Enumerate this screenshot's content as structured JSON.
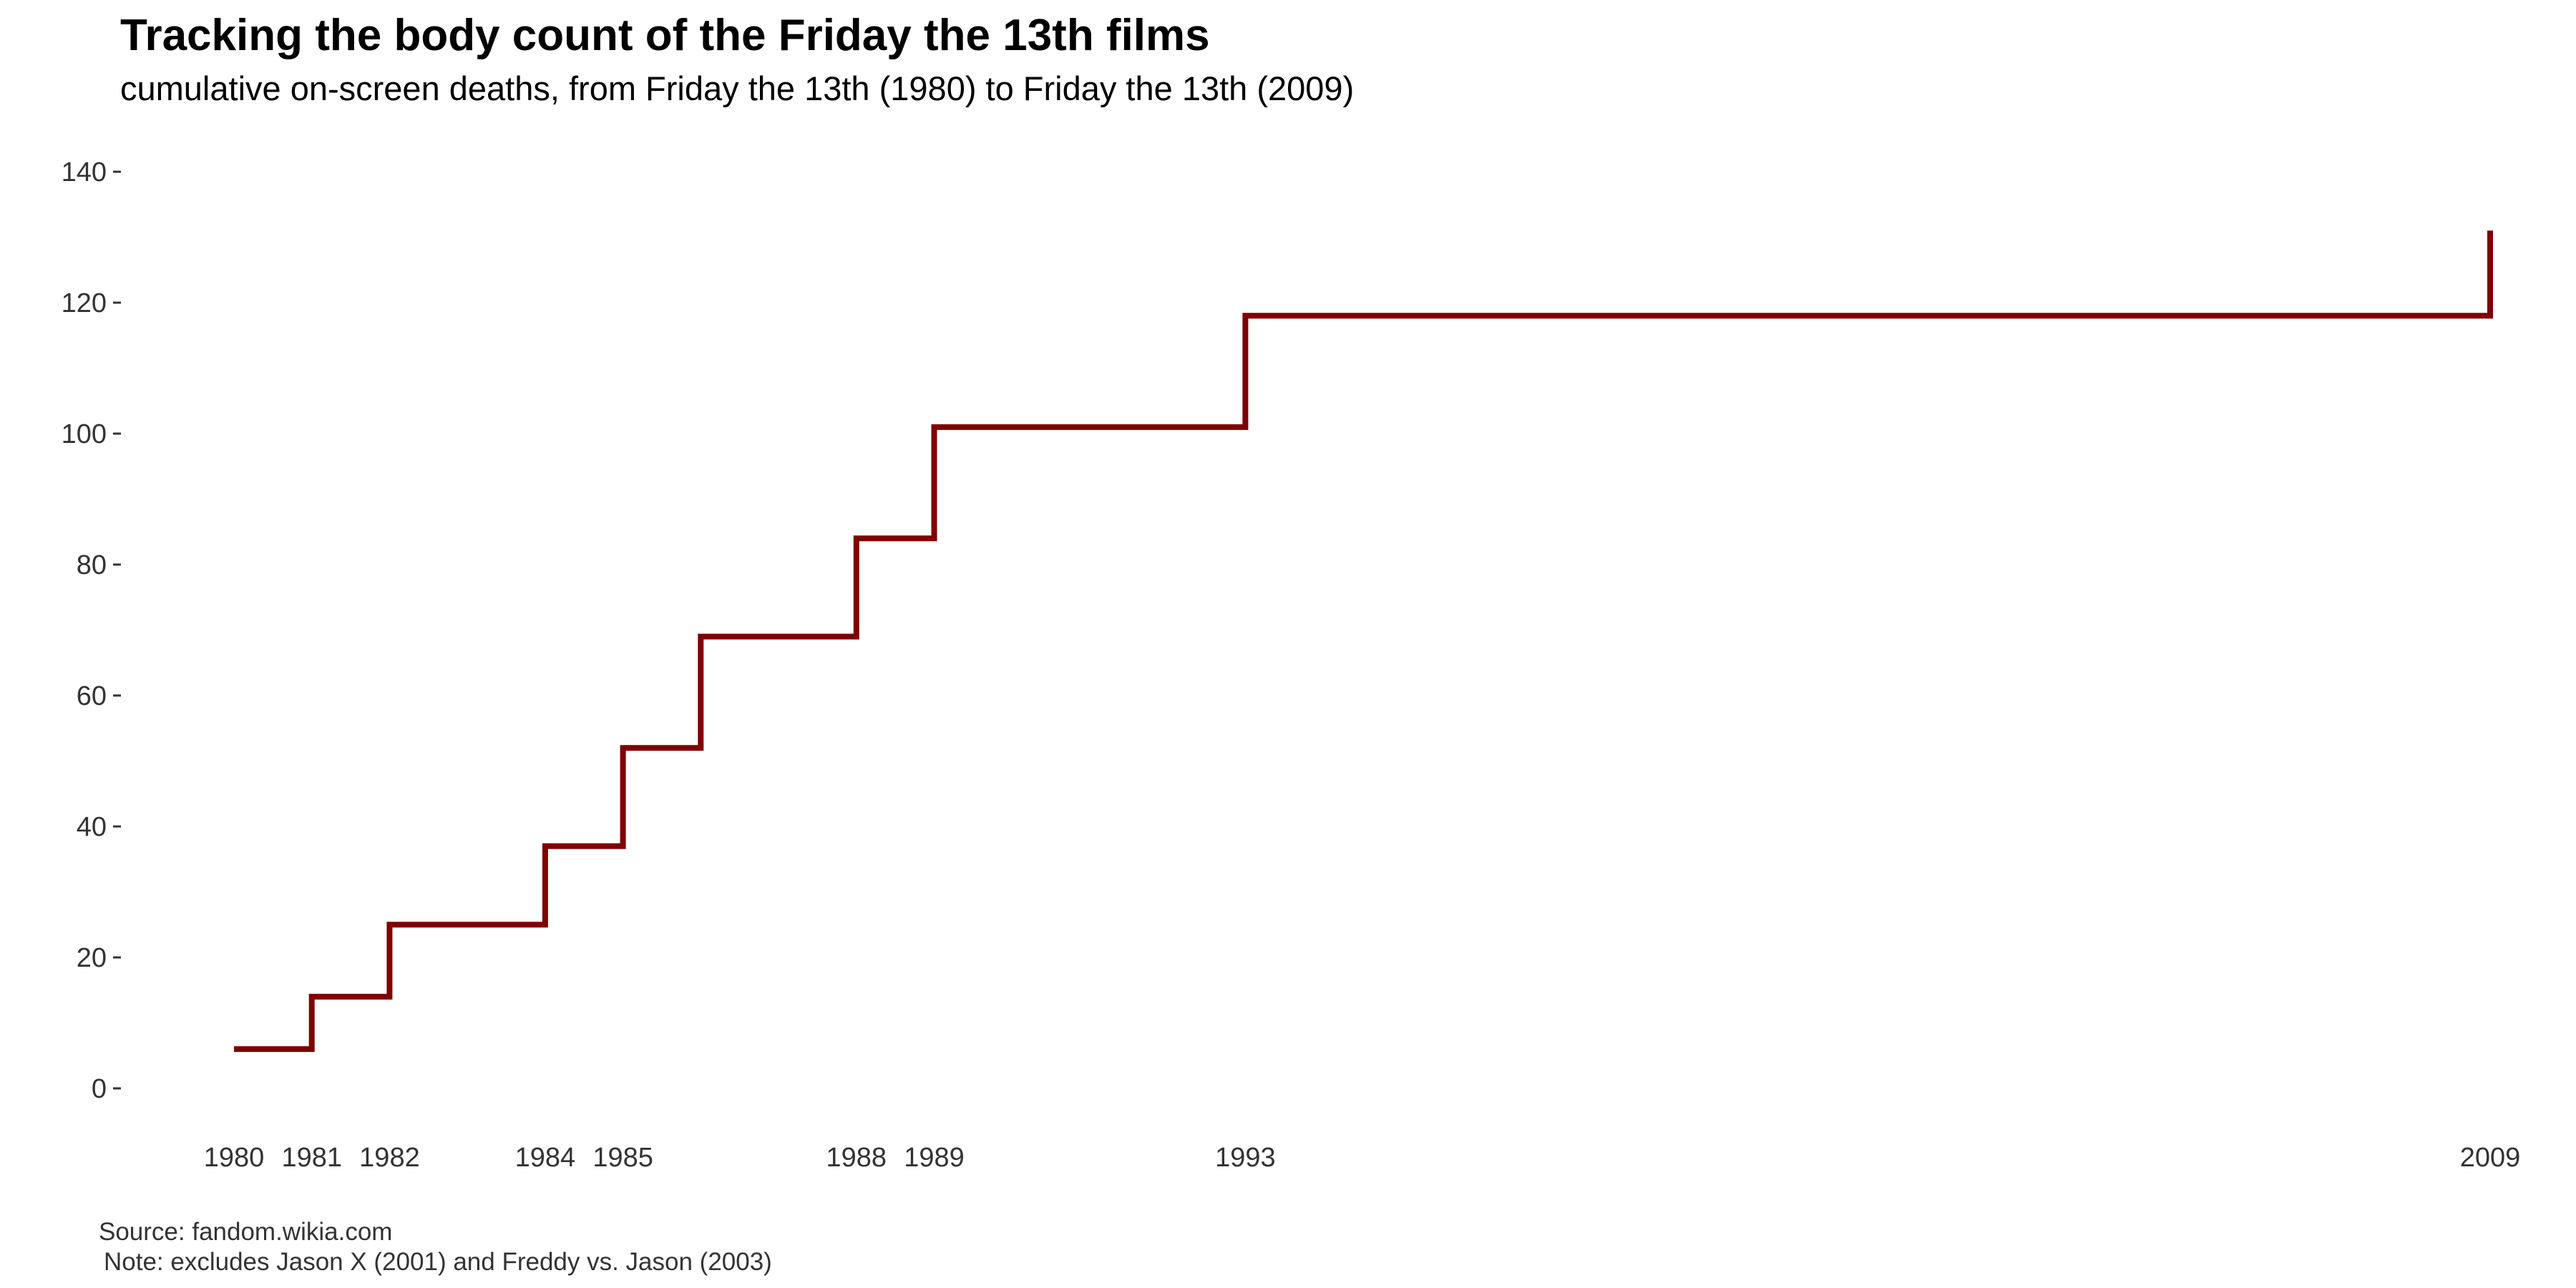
{
  "chart_data": {
    "type": "line",
    "step": true,
    "title": "Tracking the body count of the Friday the 13th films",
    "subtitle": "cumulative on-screen deaths, from Friday the 13th (1980) to Friday the 13th (2009)",
    "caption": "Source: fandom.wikia.com",
    "note": "Note: excludes Jason X (2001) and Freddy vs. Jason (2003)",
    "xlabel": "",
    "ylabel": "",
    "xlim": [
      1980,
      2009
    ],
    "ylim": [
      0,
      140
    ],
    "grid": false,
    "line_color": "#7f0000",
    "x_ticks": [
      1980,
      1981,
      1982,
      1984,
      1985,
      1988,
      1989,
      1993,
      2009
    ],
    "y_ticks": [
      0,
      20,
      40,
      60,
      80,
      100,
      120,
      140
    ],
    "series": [
      {
        "x": [
          1980,
          1981,
          1982,
          1984,
          1985,
          1986,
          1988,
          1989,
          1993,
          2009
        ],
        "y": [
          6,
          14,
          25,
          37,
          52,
          69,
          84,
          101,
          118,
          131
        ]
      }
    ]
  }
}
